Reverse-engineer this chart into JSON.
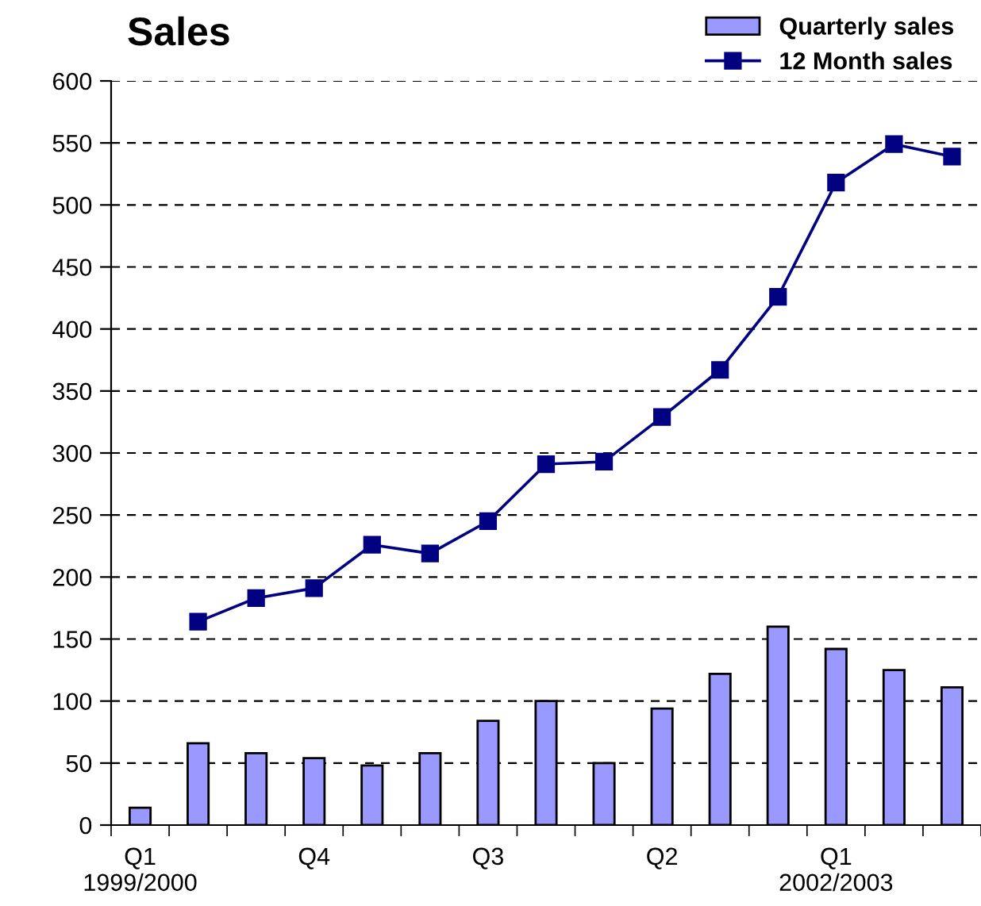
{
  "chart_data": {
    "type": "bar",
    "title": "Sales",
    "categories": [
      "Q1\n1999/2000",
      null,
      null,
      "Q4",
      null,
      null,
      "Q3",
      null,
      null,
      "Q2",
      null,
      null,
      "Q1\n2002/2003",
      null,
      null
    ],
    "series": [
      {
        "name": "Quarterly sales",
        "color": "#9999ff",
        "values": [
          14,
          66,
          58,
          54,
          48,
          58,
          84,
          100,
          50,
          94,
          122,
          160,
          142,
          125,
          111
        ]
      },
      {
        "name": "12 Month sales",
        "type": "line",
        "color": "#000080",
        "marker": "square",
        "line_style": "solid",
        "values": [
          null,
          164,
          183,
          191,
          226,
          219,
          245,
          291,
          293,
          329,
          367,
          426,
          518,
          549,
          539
        ]
      }
    ],
    "ylim": [
      0,
      600
    ],
    "yticks": [
      0,
      50,
      100,
      150,
      200,
      250,
      300,
      350,
      400,
      450,
      500,
      550,
      600
    ],
    "grid": "y",
    "legend": "top right"
  }
}
